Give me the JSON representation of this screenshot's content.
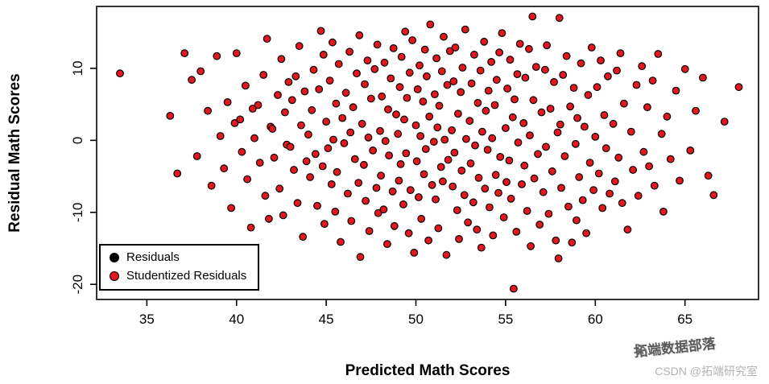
{
  "chart_data": {
    "type": "scatter",
    "title": "",
    "xlabel": "Predicted Math Scores",
    "ylabel": "Residual Math Scores",
    "xlim": [
      32.2,
      69.1
    ],
    "ylim": [
      -22.1,
      18.6
    ],
    "xticks": [
      35,
      40,
      45,
      50,
      55,
      60,
      65
    ],
    "yticks": [
      -20,
      -10,
      0,
      10
    ],
    "grid": false,
    "point_color": "#e3171e",
    "point_edge_color": "#000000",
    "legend": {
      "position": "bottom-left",
      "entries": [
        {
          "label": "Residuals",
          "color": "#000000"
        },
        {
          "label": "Studentized Residuals",
          "color": "#e3171e"
        }
      ]
    },
    "points": [
      [
        33.5,
        9.3
      ],
      [
        36.3,
        3.4
      ],
      [
        36.7,
        -4.6
      ],
      [
        37.1,
        12.1
      ],
      [
        37.5,
        8.4
      ],
      [
        37.8,
        -2.2
      ],
      [
        38.0,
        9.6
      ],
      [
        38.4,
        4.1
      ],
      [
        38.6,
        -6.3
      ],
      [
        38.9,
        11.7
      ],
      [
        39.1,
        0.6
      ],
      [
        39.3,
        -3.9
      ],
      [
        39.5,
        5.3
      ],
      [
        39.7,
        -9.4
      ],
      [
        39.9,
        2.4
      ],
      [
        40.0,
        12.1
      ],
      [
        40.2,
        2.9
      ],
      [
        40.3,
        -1.6
      ],
      [
        40.5,
        7.6
      ],
      [
        40.6,
        -5.4
      ],
      [
        40.8,
        -12.1
      ],
      [
        40.9,
        4.4
      ],
      [
        41.0,
        0.3
      ],
      [
        41.2,
        4.9
      ],
      [
        41.3,
        -3.1
      ],
      [
        41.5,
        9.1
      ],
      [
        41.6,
        -7.7
      ],
      [
        41.7,
        14.1
      ],
      [
        41.8,
        -10.9
      ],
      [
        41.9,
        1.9
      ],
      [
        42.0,
        1.6
      ],
      [
        42.1,
        -2.4
      ],
      [
        42.3,
        6.3
      ],
      [
        42.4,
        -6.7
      ],
      [
        42.5,
        11.3
      ],
      [
        42.6,
        -10.4
      ],
      [
        42.7,
        3.9
      ],
      [
        42.8,
        -0.6
      ],
      [
        42.9,
        8.1
      ],
      [
        43.0,
        -0.9
      ],
      [
        43.1,
        5.6
      ],
      [
        43.2,
        -4.1
      ],
      [
        43.3,
        8.9
      ],
      [
        43.4,
        -8.7
      ],
      [
        43.5,
        13.1
      ],
      [
        43.6,
        2.1
      ],
      [
        43.7,
        -13.4
      ],
      [
        43.8,
        6.8
      ],
      [
        43.9,
        -2.9
      ],
      [
        44.0,
        0.8
      ],
      [
        44.1,
        -5.1
      ],
      [
        44.2,
        4.2
      ],
      [
        44.3,
        9.8
      ],
      [
        44.4,
        -1.9
      ],
      [
        44.5,
        -9.1
      ],
      [
        44.6,
        7.1
      ],
      [
        44.7,
        15.2
      ],
      [
        44.8,
        -3.6
      ],
      [
        44.85,
        11.9
      ],
      [
        44.9,
        -11.6
      ],
      [
        45.0,
        2.6
      ],
      [
        45.1,
        -1.1
      ],
      [
        45.2,
        8.3
      ],
      [
        45.3,
        -6.1
      ],
      [
        45.35,
        13.6
      ],
      [
        45.4,
        0.1
      ],
      [
        45.5,
        -9.9
      ],
      [
        45.55,
        5.1
      ],
      [
        45.6,
        -4.4
      ],
      [
        45.7,
        10.6
      ],
      [
        45.8,
        -14.1
      ],
      [
        45.9,
        3.1
      ],
      [
        46.0,
        -0.4
      ],
      [
        46.1,
        6.6
      ],
      [
        46.2,
        -7.4
      ],
      [
        46.3,
        12.3
      ],
      [
        46.35,
        1.1
      ],
      [
        46.4,
        -11.2
      ],
      [
        46.5,
        4.6
      ],
      [
        46.6,
        -2.6
      ],
      [
        46.7,
        9.3
      ],
      [
        46.8,
        -5.9
      ],
      [
        46.85,
        14.6
      ],
      [
        46.9,
        -16.2
      ],
      [
        47.0,
        2.3
      ],
      [
        47.1,
        -3.4
      ],
      [
        47.15,
        7.8
      ],
      [
        47.2,
        -8.4
      ],
      [
        47.3,
        11.1
      ],
      [
        47.35,
        0.4
      ],
      [
        47.4,
        -12.6
      ],
      [
        47.5,
        5.8
      ],
      [
        47.6,
        -1.4
      ],
      [
        47.7,
        9.9
      ],
      [
        47.8,
        -6.6
      ],
      [
        47.85,
        13.3
      ],
      [
        47.9,
        -10.1
      ],
      [
        48.0,
        1.3
      ],
      [
        48.05,
        -4.9
      ],
      [
        48.1,
        6.1
      ],
      [
        48.2,
        -9.6
      ],
      [
        48.25,
        10.8
      ],
      [
        48.3,
        -0.1
      ],
      [
        48.4,
        -14.4
      ],
      [
        48.45,
        4.3
      ],
      [
        48.5,
        -2.1
      ],
      [
        48.6,
        8.6
      ],
      [
        48.7,
        -7.1
      ],
      [
        48.75,
        12.8
      ],
      [
        48.8,
        -11.9
      ],
      [
        48.9,
        3.6
      ],
      [
        49.0,
        0.9
      ],
      [
        49.05,
        -5.6
      ],
      [
        49.1,
        7.4
      ],
      [
        49.15,
        -3.3
      ],
      [
        49.2,
        11.6
      ],
      [
        49.3,
        -8.9
      ],
      [
        49.35,
        2.9
      ],
      [
        49.4,
        15.1
      ],
      [
        49.45,
        -1.8
      ],
      [
        49.5,
        5.9
      ],
      [
        49.6,
        -12.9
      ],
      [
        49.65,
        9.4
      ],
      [
        49.7,
        -6.9
      ],
      [
        49.8,
        13.9
      ],
      [
        49.9,
        -15.6
      ],
      [
        50.0,
        2.1
      ],
      [
        50.05,
        -2.9
      ],
      [
        50.1,
        7.1
      ],
      [
        50.15,
        -7.9
      ],
      [
        50.2,
        10.4
      ],
      [
        50.25,
        0.6
      ],
      [
        50.3,
        -10.9
      ],
      [
        50.4,
        5.4
      ],
      [
        50.45,
        -4.7
      ],
      [
        50.5,
        12.6
      ],
      [
        50.55,
        -1.2
      ],
      [
        50.6,
        8.9
      ],
      [
        50.7,
        -13.9
      ],
      [
        50.75,
        3.3
      ],
      [
        50.8,
        16.1
      ],
      [
        50.9,
        -6.2
      ],
      [
        51.0,
        -0.2
      ],
      [
        51.05,
        6.4
      ],
      [
        51.1,
        -8.2
      ],
      [
        51.15,
        11.4
      ],
      [
        51.2,
        1.8
      ],
      [
        51.25,
        -12.2
      ],
      [
        51.3,
        4.8
      ],
      [
        51.4,
        -3.7
      ],
      [
        51.45,
        9.6
      ],
      [
        51.5,
        -5.7
      ],
      [
        51.55,
        14.4
      ],
      [
        51.6,
        0.1
      ],
      [
        51.7,
        -15.9
      ],
      [
        51.75,
        7.7
      ],
      [
        51.8,
        -2.7
      ],
      [
        51.9,
        12.4
      ],
      [
        52.0,
        1.4
      ],
      [
        52.05,
        -6.4
      ],
      [
        52.1,
        8.2
      ],
      [
        52.15,
        -1.7
      ],
      [
        52.2,
        12.9
      ],
      [
        52.3,
        -9.7
      ],
      [
        52.35,
        3.7
      ],
      [
        52.4,
        -13.7
      ],
      [
        52.5,
        6.7
      ],
      [
        52.55,
        -4.2
      ],
      [
        52.6,
        10.1
      ],
      [
        52.7,
        -7.6
      ],
      [
        52.75,
        15.4
      ],
      [
        52.8,
        0.2
      ],
      [
        52.9,
        -11.4
      ],
      [
        53.0,
        2.7
      ],
      [
        53.05,
        -3.2
      ],
      [
        53.1,
        7.9
      ],
      [
        53.2,
        -8.6
      ],
      [
        53.25,
        11.9
      ],
      [
        53.3,
        -0.7
      ],
      [
        53.4,
        -12.4
      ],
      [
        53.45,
        5.2
      ],
      [
        53.5,
        -5.2
      ],
      [
        53.6,
        9.7
      ],
      [
        53.65,
        -14.9
      ],
      [
        53.7,
        1.2
      ],
      [
        53.8,
        13.7
      ],
      [
        53.85,
        -6.7
      ],
      [
        53.9,
        4.1
      ],
      [
        54.0,
        -1.3
      ],
      [
        54.05,
        6.9
      ],
      [
        54.1,
        -9.3
      ],
      [
        54.2,
        10.9
      ],
      [
        54.25,
        0.3
      ],
      [
        54.3,
        -13.2
      ],
      [
        54.4,
        4.9
      ],
      [
        54.45,
        -4.8
      ],
      [
        54.5,
        8.4
      ],
      [
        54.6,
        -7.3
      ],
      [
        54.65,
        12.2
      ],
      [
        54.7,
        -2.3
      ],
      [
        54.8,
        14.9
      ],
      [
        54.9,
        -10.7
      ],
      [
        55.0,
        1.7
      ],
      [
        55.05,
        -5.8
      ],
      [
        55.1,
        7.2
      ],
      [
        55.2,
        -2.8
      ],
      [
        55.25,
        11.2
      ],
      [
        55.3,
        -8.1
      ],
      [
        55.4,
        3.2
      ],
      [
        55.45,
        -20.6
      ],
      [
        55.5,
        5.7
      ],
      [
        55.6,
        -12.7
      ],
      [
        55.65,
        9.2
      ],
      [
        55.7,
        -0.3
      ],
      [
        55.8,
        13.4
      ],
      [
        55.9,
        -6.1
      ],
      [
        56.0,
        2.4
      ],
      [
        56.05,
        -3.5
      ],
      [
        56.1,
        8.7
      ],
      [
        56.2,
        -9.8
      ],
      [
        56.3,
        12.7
      ],
      [
        56.35,
        0.7
      ],
      [
        56.4,
        -14.7
      ],
      [
        56.5,
        17.2
      ],
      [
        56.55,
        5.6
      ],
      [
        56.6,
        -5.3
      ],
      [
        56.7,
        10.2
      ],
      [
        56.8,
        -1.9
      ],
      [
        56.9,
        -11.7
      ],
      [
        57.0,
        3.9
      ],
      [
        57.1,
        -7.2
      ],
      [
        57.2,
        9.8
      ],
      [
        57.25,
        -0.9
      ],
      [
        57.3,
        13.2
      ],
      [
        57.4,
        -10.2
      ],
      [
        57.5,
        4.4
      ],
      [
        57.6,
        -4.3
      ],
      [
        57.7,
        8.1
      ],
      [
        57.8,
        -13.9
      ],
      [
        57.9,
        1.1
      ],
      [
        57.95,
        -16.4
      ],
      [
        58.0,
        17.0
      ],
      [
        58.05,
        2.2
      ],
      [
        58.1,
        -6.6
      ],
      [
        58.2,
        9.1
      ],
      [
        58.3,
        -2.2
      ],
      [
        58.4,
        11.7
      ],
      [
        58.5,
        -9.2
      ],
      [
        58.6,
        4.7
      ],
      [
        58.7,
        -14.2
      ],
      [
        58.8,
        7.3
      ],
      [
        58.9,
        -0.5
      ],
      [
        58.95,
        -11.1
      ],
      [
        59.0,
        3.1
      ],
      [
        59.1,
        -5.1
      ],
      [
        59.2,
        10.7
      ],
      [
        59.3,
        -8.3
      ],
      [
        59.4,
        1.9
      ],
      [
        59.5,
        -12.9
      ],
      [
        59.6,
        6.3
      ],
      [
        59.7,
        -3.1
      ],
      [
        59.8,
        12.9
      ],
      [
        59.9,
        -6.9
      ],
      [
        60.0,
        0.5
      ],
      [
        60.1,
        7.4
      ],
      [
        60.2,
        -4.6
      ],
      [
        60.3,
        11.1
      ],
      [
        60.4,
        -9.4
      ],
      [
        60.5,
        3.5
      ],
      [
        60.6,
        -1.1
      ],
      [
        60.7,
        8.9
      ],
      [
        60.8,
        -7.4
      ],
      [
        61.0,
        2.3
      ],
      [
        61.1,
        -5.7
      ],
      [
        61.2,
        9.7
      ],
      [
        61.3,
        -2.4
      ],
      [
        61.4,
        12.1
      ],
      [
        61.5,
        -8.7
      ],
      [
        61.6,
        5.1
      ],
      [
        61.8,
        -12.4
      ],
      [
        62.0,
        1.2
      ],
      [
        62.1,
        -4.1
      ],
      [
        62.3,
        7.7
      ],
      [
        62.4,
        -7.7
      ],
      [
        62.6,
        10.3
      ],
      [
        62.7,
        -1.6
      ],
      [
        62.9,
        4.6
      ],
      [
        63.0,
        -3.6
      ],
      [
        63.2,
        8.3
      ],
      [
        63.3,
        -6.3
      ],
      [
        63.5,
        12.0
      ],
      [
        63.7,
        0.9
      ],
      [
        63.8,
        -9.9
      ],
      [
        64.0,
        3.3
      ],
      [
        64.2,
        -2.6
      ],
      [
        64.5,
        6.9
      ],
      [
        64.7,
        -5.6
      ],
      [
        65.0,
        9.9
      ],
      [
        65.3,
        -1.4
      ],
      [
        65.6,
        4.1
      ],
      [
        66.0,
        8.7
      ],
      [
        66.3,
        -4.9
      ],
      [
        66.6,
        -7.6
      ],
      [
        67.2,
        2.6
      ],
      [
        68.0,
        7.4
      ]
    ]
  },
  "watermark": {
    "line1": "拓端数据部落",
    "line2": "CSDN @拓端研究室"
  }
}
